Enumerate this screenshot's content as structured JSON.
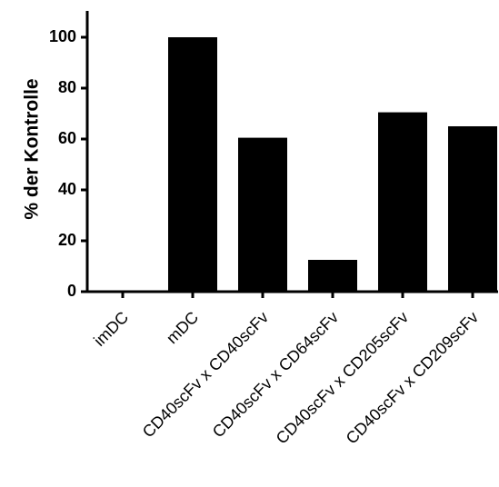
{
  "chart_data": {
    "type": "bar",
    "title": "",
    "xlabel": "",
    "ylabel": "% der Kontrolle",
    "ylim": [
      0,
      110
    ],
    "yticks": [
      0,
      20,
      40,
      60,
      80,
      100
    ],
    "grid": false,
    "legend": "none",
    "categories": [
      "imDC",
      "mDC",
      "CD40scFv x CD40scFv",
      "CD40scFv x CD64scFv",
      "CD40scFv x CD205scFv",
      "CD40scFv x CD209scFv"
    ],
    "series": [
      {
        "values": [
          0.5,
          100,
          60.5,
          12.5,
          70.5,
          65
        ]
      }
    ],
    "bar_color": "#000000"
  }
}
